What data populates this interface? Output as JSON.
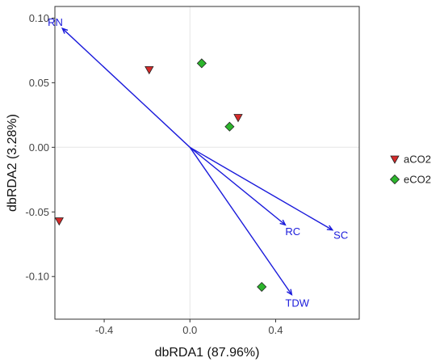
{
  "chart_data": {
    "type": "scatter",
    "xlabel": "dbRDA1 (87.96%)",
    "ylabel": "dbRDA2 (3.28%)",
    "xlim": [
      -0.63,
      0.79
    ],
    "ylim": [
      -0.133,
      0.109
    ],
    "x_ticks": [
      -0.4,
      0.0,
      0.4
    ],
    "x_tick_labels": [
      "-0.4",
      "0.0",
      "0.4"
    ],
    "y_ticks": [
      0.1,
      0.05,
      0.0,
      -0.05,
      -0.1
    ],
    "y_tick_labels": [
      "0.10",
      "0.05",
      "0.00",
      "-0.05",
      "-0.10"
    ],
    "grid": true,
    "legend_position": "right",
    "series": [
      {
        "name": "aCO2",
        "color": "#d42a2a",
        "marker": "triangle-down",
        "points": [
          {
            "x": -0.61,
            "y": -0.057
          },
          {
            "x": -0.19,
            "y": 0.06
          },
          {
            "x": 0.225,
            "y": 0.023
          }
        ]
      },
      {
        "name": "eCO2",
        "color": "#2cb52c",
        "marker": "diamond",
        "points": [
          {
            "x": 0.055,
            "y": 0.065
          },
          {
            "x": 0.185,
            "y": 0.016
          },
          {
            "x": 0.335,
            "y": -0.108
          }
        ]
      }
    ],
    "vectors": [
      {
        "label": "RN",
        "x": -0.595,
        "y": 0.092
      },
      {
        "label": "RC",
        "x": 0.445,
        "y": -0.06
      },
      {
        "label": "SC",
        "x": 0.665,
        "y": -0.064
      },
      {
        "label": "TDW",
        "x": 0.475,
        "y": -0.114
      }
    ],
    "vector_color": "#1a1adb"
  }
}
